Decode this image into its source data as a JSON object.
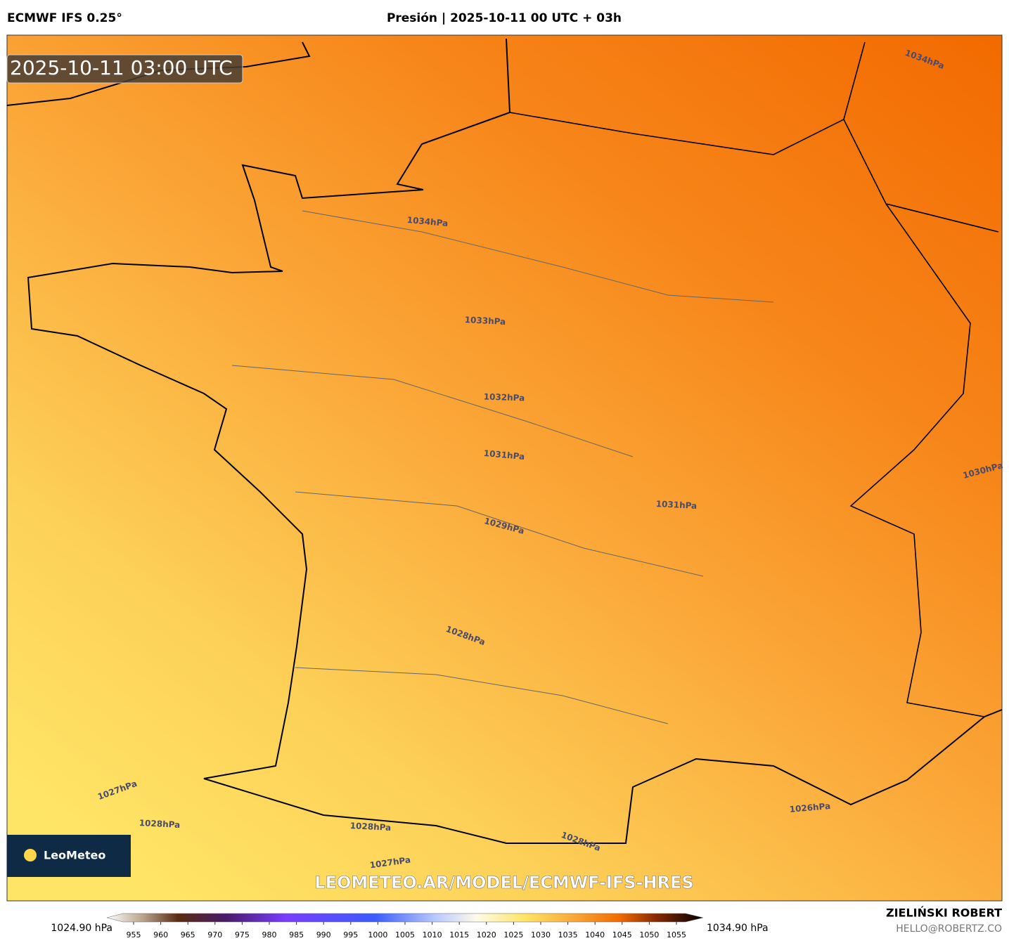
{
  "header": {
    "model": "ECMWF IFS 0.25°",
    "title": "Presión | 2025-10-11 00 UTC + 03h"
  },
  "map": {
    "timestamp": "2025-10-11 03:00 UTC",
    "isobar_labels": [
      "1034hPa",
      "1034hPa",
      "1033hPa",
      "1032hPa",
      "1031hPa",
      "1030hPa",
      "1031hPa",
      "1029hPa",
      "1028hPa",
      "1027hPa",
      "1028hPa",
      "1026hPa",
      "1028hPa",
      "1028hPa",
      "1027hPa"
    ],
    "logo": "LeoMeteo",
    "watermark": "LEOMETEO.AR/MODEL/ECMWF-IFS-HRES"
  },
  "colorbar": {
    "min_label": "1024.90 hPa",
    "max_label": "1034.90 hPa",
    "ticks": [
      955,
      960,
      965,
      970,
      975,
      980,
      985,
      990,
      995,
      1000,
      1005,
      1010,
      1015,
      1020,
      1025,
      1030,
      1035,
      1040,
      1045,
      1050,
      1055
    ]
  },
  "footer": {
    "author": "ZIELIŃSKI ROBERT",
    "email": "HELLO@ROBERTZ.CO"
  }
}
